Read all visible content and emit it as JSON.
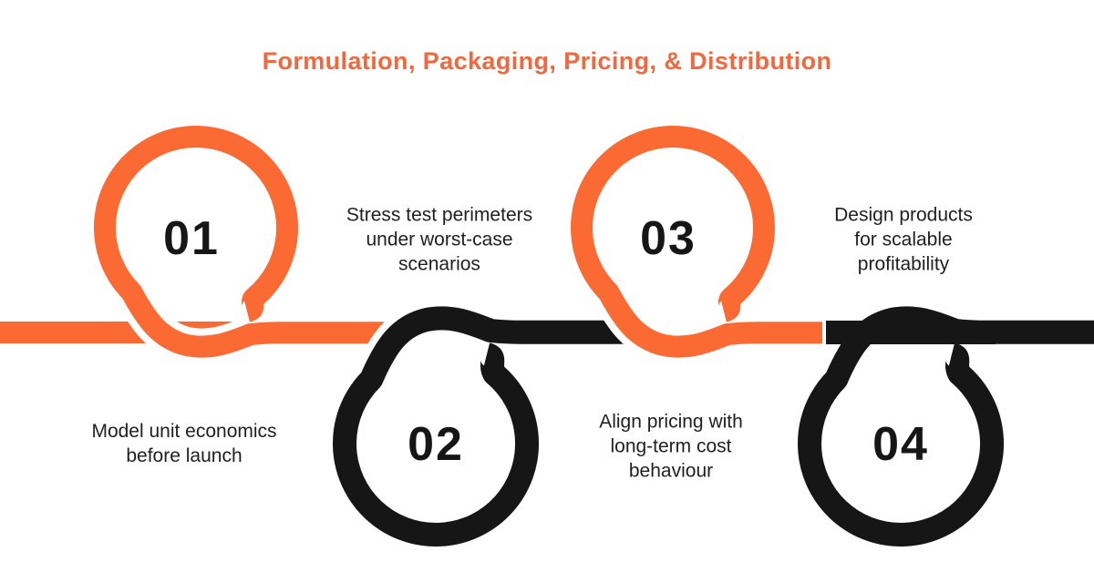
{
  "title": {
    "text": "Formulation, Packaging, Pricing, & Distribution",
    "color": "#F2673D"
  },
  "colors": {
    "orange": "#FC6A33",
    "black": "#161616",
    "background": "#FFFFFF",
    "label_text": "#1F1F1F"
  },
  "steps": [
    {
      "number": "01",
      "label_lines": [
        "Stress test perimeters",
        "under worst-case",
        "scenarios"
      ],
      "color": "orange",
      "position": "above-line"
    },
    {
      "number": "02",
      "label_lines": [
        "Model unit economics",
        "before launch"
      ],
      "color": "black",
      "position": "below-line"
    },
    {
      "number": "03",
      "label_lines": [
        "Design products",
        "for scalable",
        "profitability"
      ],
      "color": "orange",
      "position": "above-line"
    },
    {
      "number": "04",
      "label_lines": [
        "Align pricing with",
        "long-term cost",
        "behaviour"
      ],
      "color": "black",
      "position": "below-line"
    }
  ]
}
